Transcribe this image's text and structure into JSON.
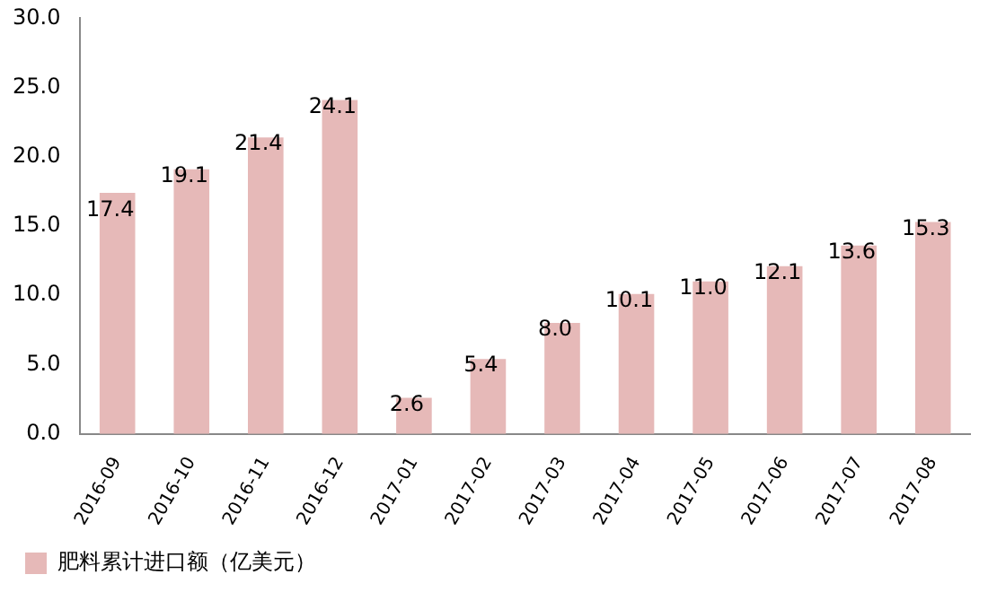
{
  "chart_data": {
    "type": "bar",
    "categories": [
      "2016-09",
      "2016-10",
      "2016-11",
      "2016-12",
      "2017-01",
      "2017-02",
      "2017-03",
      "2017-04",
      "2017-05",
      "2017-06",
      "2017-07",
      "2017-08"
    ],
    "series": [
      {
        "name": "肥料累计进口额（亿美元）",
        "color": "#e6b9b8",
        "values": [
          17.4,
          19.1,
          21.4,
          24.1,
          2.6,
          5.4,
          8.0,
          10.1,
          11.0,
          12.1,
          13.6,
          15.3
        ],
        "value_labels": [
          "17.4",
          "19.1",
          "21.4",
          "24.1",
          "2.6",
          "5.4",
          "8.0",
          "10.1",
          "11.0",
          "12.1",
          "13.6",
          "15.3"
        ]
      }
    ],
    "ylim": [
      0,
      30
    ],
    "yticks": [
      {
        "value": 0,
        "label": "0.0"
      },
      {
        "value": 5,
        "label": "5.0"
      },
      {
        "value": 10,
        "label": "10.0"
      },
      {
        "value": 15,
        "label": "15.0"
      },
      {
        "value": 20,
        "label": "20.0"
      },
      {
        "value": 25,
        "label": "25.0"
      },
      {
        "value": 30,
        "label": "30.0"
      }
    ],
    "grid": false,
    "legend": "bottom left"
  }
}
